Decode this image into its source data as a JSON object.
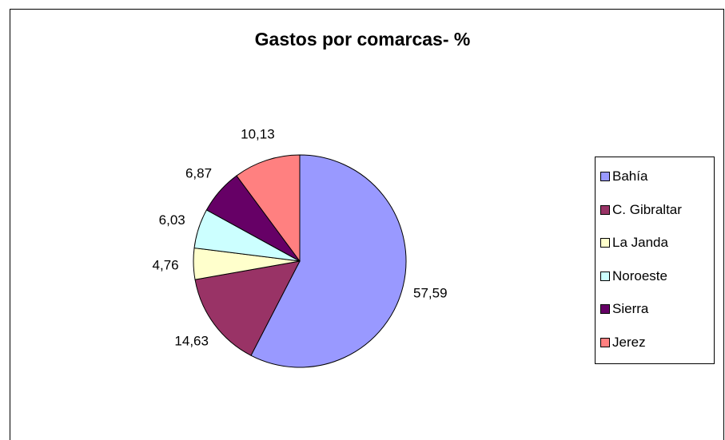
{
  "chart_data": {
    "type": "pie",
    "title": "Gastos por comarcas- %",
    "categories": [
      "Bahía",
      "C. Gibraltar",
      "La Janda",
      "Noroeste",
      "Sierra",
      "Jerez"
    ],
    "values": [
      57.59,
      14.63,
      4.76,
      6.03,
      6.87,
      10.13
    ],
    "data_labels": [
      "57,59",
      "14,63",
      "4,76",
      "6,03",
      "6,87",
      "10,13"
    ],
    "colors": [
      "#9999FF",
      "#993366",
      "#FFFFCC",
      "#CCFFFF",
      "#660066",
      "#FF8080"
    ],
    "legend": {
      "placement": "right",
      "entries": [
        "Bahía",
        "C. Gibraltar",
        "La Janda",
        "Noroeste",
        "Sierra",
        "Jerez"
      ]
    },
    "start_angle_deg": 0,
    "direction": "clockwise"
  }
}
